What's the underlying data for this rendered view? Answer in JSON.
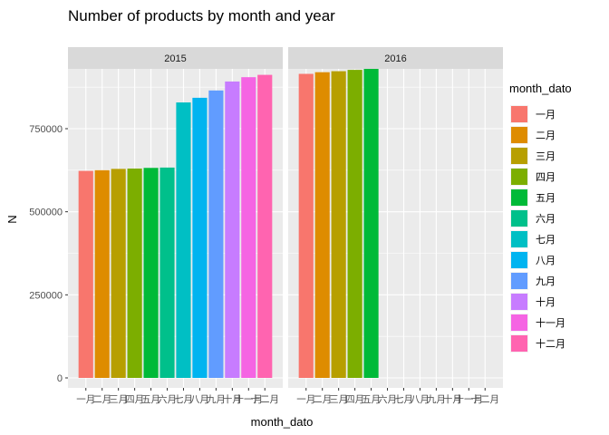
{
  "chart_data": {
    "type": "bar",
    "title": "Number of products by month and year",
    "xlabel": "month_dato",
    "ylabel": "N",
    "ylim": [
      0,
      980000
    ],
    "yticks": [
      0,
      250000,
      500000,
      750000
    ],
    "ytick_labels": [
      "0",
      "250000",
      "500000",
      "750000"
    ],
    "grid": true,
    "legend_placement": "right",
    "legend_title": "month_dato",
    "categories": [
      "一月",
      "二月",
      "三月",
      "四月",
      "五月",
      "六月",
      "七月",
      "八月",
      "九月",
      "十月",
      "十一月",
      "十二月"
    ],
    "colors": [
      "#F8766D",
      "#DE8C00",
      "#B79F00",
      "#7CAE00",
      "#00BA38",
      "#00C08B",
      "#00BFC4",
      "#00B4F0",
      "#619CFF",
      "#C77CFF",
      "#F564E3",
      "#FF64B0"
    ],
    "facets": [
      {
        "label": "2015",
        "values": [
          623000,
          625000,
          629000,
          630000,
          632000,
          633000,
          829000,
          843000,
          865000,
          892000,
          905000,
          912000
        ]
      },
      {
        "label": "2016",
        "values": [
          915000,
          920000,
          923000,
          927000,
          930000,
          null,
          null,
          null,
          null,
          null,
          null,
          null
        ]
      }
    ]
  }
}
